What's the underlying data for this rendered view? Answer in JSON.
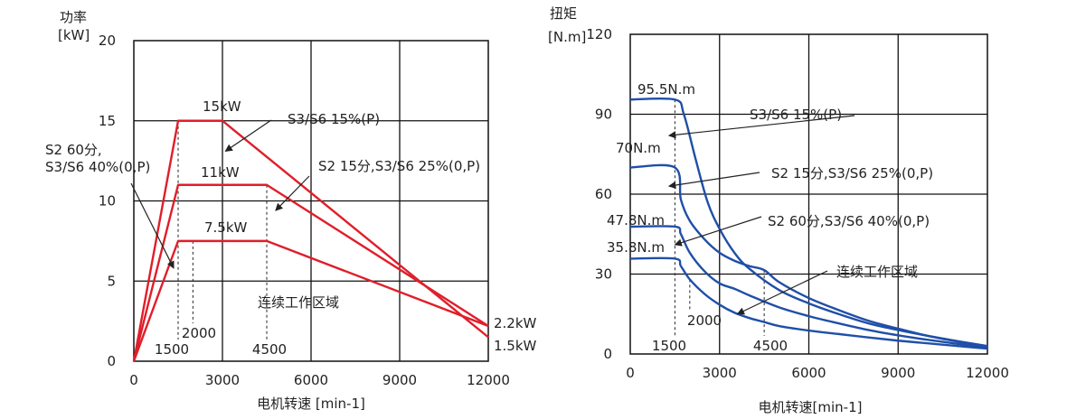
{
  "chart_data": [
    {
      "type": "line",
      "title": "",
      "ylabel": "功率",
      "yunit": "[kW]",
      "xlabel": "电机转速 [min-1]",
      "xlim": [
        0,
        12000
      ],
      "ylim": [
        0,
        20
      ],
      "xticks": [
        "0",
        "3000",
        "6000",
        "9000",
        "12000"
      ],
      "xtick_values": [
        0,
        3000,
        6000,
        9000,
        12000
      ],
      "yticks": [
        "0",
        "5",
        "10",
        "15",
        "20"
      ],
      "ytick_values": [
        0,
        5,
        10,
        15,
        20
      ],
      "grid": true,
      "line_color": "#e01e2a",
      "series": [
        {
          "name": "S3/S6 15%(P)",
          "x": [
            0,
            1500,
            3000,
            12000
          ],
          "y": [
            0,
            15,
            15,
            1.5
          ]
        },
        {
          "name": "S2 15分,S3/S6 25%(0,P)",
          "x": [
            0,
            1500,
            4500,
            12000
          ],
          "y": [
            0,
            11,
            11,
            2.2
          ]
        },
        {
          "name": "S2 60分,S3/S6 40%(0,P)",
          "x": [
            0,
            1500,
            4500,
            12000
          ],
          "y": [
            0,
            7.5,
            7.5,
            2.2
          ]
        }
      ],
      "value_labels": [
        {
          "text": "15kW",
          "x": 2300,
          "y": 15.5
        },
        {
          "text": "11kW",
          "x": 2300,
          "y": 11.5
        },
        {
          "text": "7.5kW",
          "x": 2400,
          "y": 8.1
        },
        {
          "text": "2.2kW",
          "x": 12000,
          "y": 2.2
        },
        {
          "text": "1.5kW",
          "x": 12000,
          "y": 1.5
        }
      ],
      "region_label": "连续工作区域",
      "speed_markers": [
        "1500",
        "2000",
        "4500"
      ],
      "annotations": [
        {
          "text": "S3/S6 15%(P)",
          "target_x": 3100,
          "target_y": 13.1
        },
        {
          "text": "S2 15分,S3/S6 25%(0,P)",
          "target_x": 4800,
          "target_y": 9.4
        },
        {
          "text": "S2 60分,",
          "text2": "S3/S6 40%(0,P)",
          "target_x": 1350,
          "target_y": 5.8
        }
      ]
    },
    {
      "type": "line",
      "title": "",
      "ylabel": "扭矩",
      "yunit": "[N.m]",
      "xlabel": "电机转速[min-1]",
      "xlim": [
        0,
        12000
      ],
      "ylim": [
        0,
        120
      ],
      "xticks": [
        "0",
        "3000",
        "6000",
        "9000",
        "12000"
      ],
      "xtick_values": [
        0,
        3000,
        6000,
        9000,
        12000
      ],
      "yticks": [
        "0",
        "30",
        "60",
        "90",
        "120"
      ],
      "ytick_values": [
        0,
        30,
        60,
        90,
        120
      ],
      "grid": true,
      "line_color": "#1f4fa8",
      "series": [
        {
          "name": "S3/S6 15%(P)",
          "x": [
            0,
            1500,
            1800,
            2200,
            2600,
            3000,
            3500,
            4000,
            5000,
            6000,
            7000,
            8000,
            9000,
            10000,
            11000,
            12000
          ],
          "y": [
            95.5,
            95.5,
            90,
            73,
            57,
            47,
            38,
            32,
            24,
            19,
            15,
            11.5,
            9,
            6.8,
            4.8,
            3
          ]
        },
        {
          "name": "S2 15分,S3/S6 25%(0,P)",
          "x": [
            0,
            1500,
            1700,
            2000,
            2500,
            3000,
            3500,
            4000,
            4500,
            5000,
            6000,
            7000,
            8000,
            9000,
            10000,
            11000,
            12000
          ],
          "y": [
            70,
            70,
            58,
            50,
            43,
            38,
            35,
            33,
            31.5,
            27,
            21,
            16.5,
            12.5,
            9.5,
            6.8,
            4.6,
            2.5
          ]
        },
        {
          "name": "S2 60分,S3/S6 40%(0,P)",
          "x": [
            0,
            1500,
            1700,
            2000,
            2500,
            3000,
            3500,
            4000,
            5000,
            6000,
            7000,
            8000,
            9000,
            10000,
            11000,
            12000
          ],
          "y": [
            47.8,
            47.8,
            45,
            38,
            31,
            26.5,
            24.5,
            22,
            17.5,
            14.2,
            11.5,
            9,
            7,
            5.3,
            3.8,
            2.5
          ]
        },
        {
          "name": "连续工作区域",
          "x": [
            0,
            1500,
            1700,
            2000,
            2500,
            3000,
            3500,
            4000,
            4500,
            5000,
            6000,
            7000,
            8000,
            9000,
            10000,
            11000,
            12000
          ],
          "y": [
            35.8,
            35.8,
            33,
            28,
            22.5,
            18.5,
            15.5,
            13.5,
            12,
            10.5,
            8.8,
            7.5,
            6.2,
            5,
            4,
            3,
            2
          ]
        }
      ],
      "value_labels": [
        {
          "text": "95.5N.m",
          "x": 200,
          "y": 101
        },
        {
          "text": "70N.m",
          "x": -400,
          "y": 76
        },
        {
          "text": "47.8N.m",
          "x": -700,
          "y": 51
        },
        {
          "text": "35.8N.m",
          "x": -700,
          "y": 39
        }
      ],
      "region_label": "连续工作区域",
      "speed_markers": [
        "1500",
        "2000",
        "4500"
      ],
      "annotations": [
        {
          "text": "S3/S6 15%(P)",
          "target_x": 1300,
          "target_y": 82
        },
        {
          "text": "S2 15分,S3/S6 25%(0,P)",
          "target_x": 1300,
          "target_y": 63
        },
        {
          "text": "S2 60分,S3/S6 40%(0,P)",
          "target_x": 1500,
          "target_y": 41
        },
        {
          "text": "连续工作区域",
          "target_x": 3600,
          "target_y": 15
        }
      ]
    }
  ]
}
